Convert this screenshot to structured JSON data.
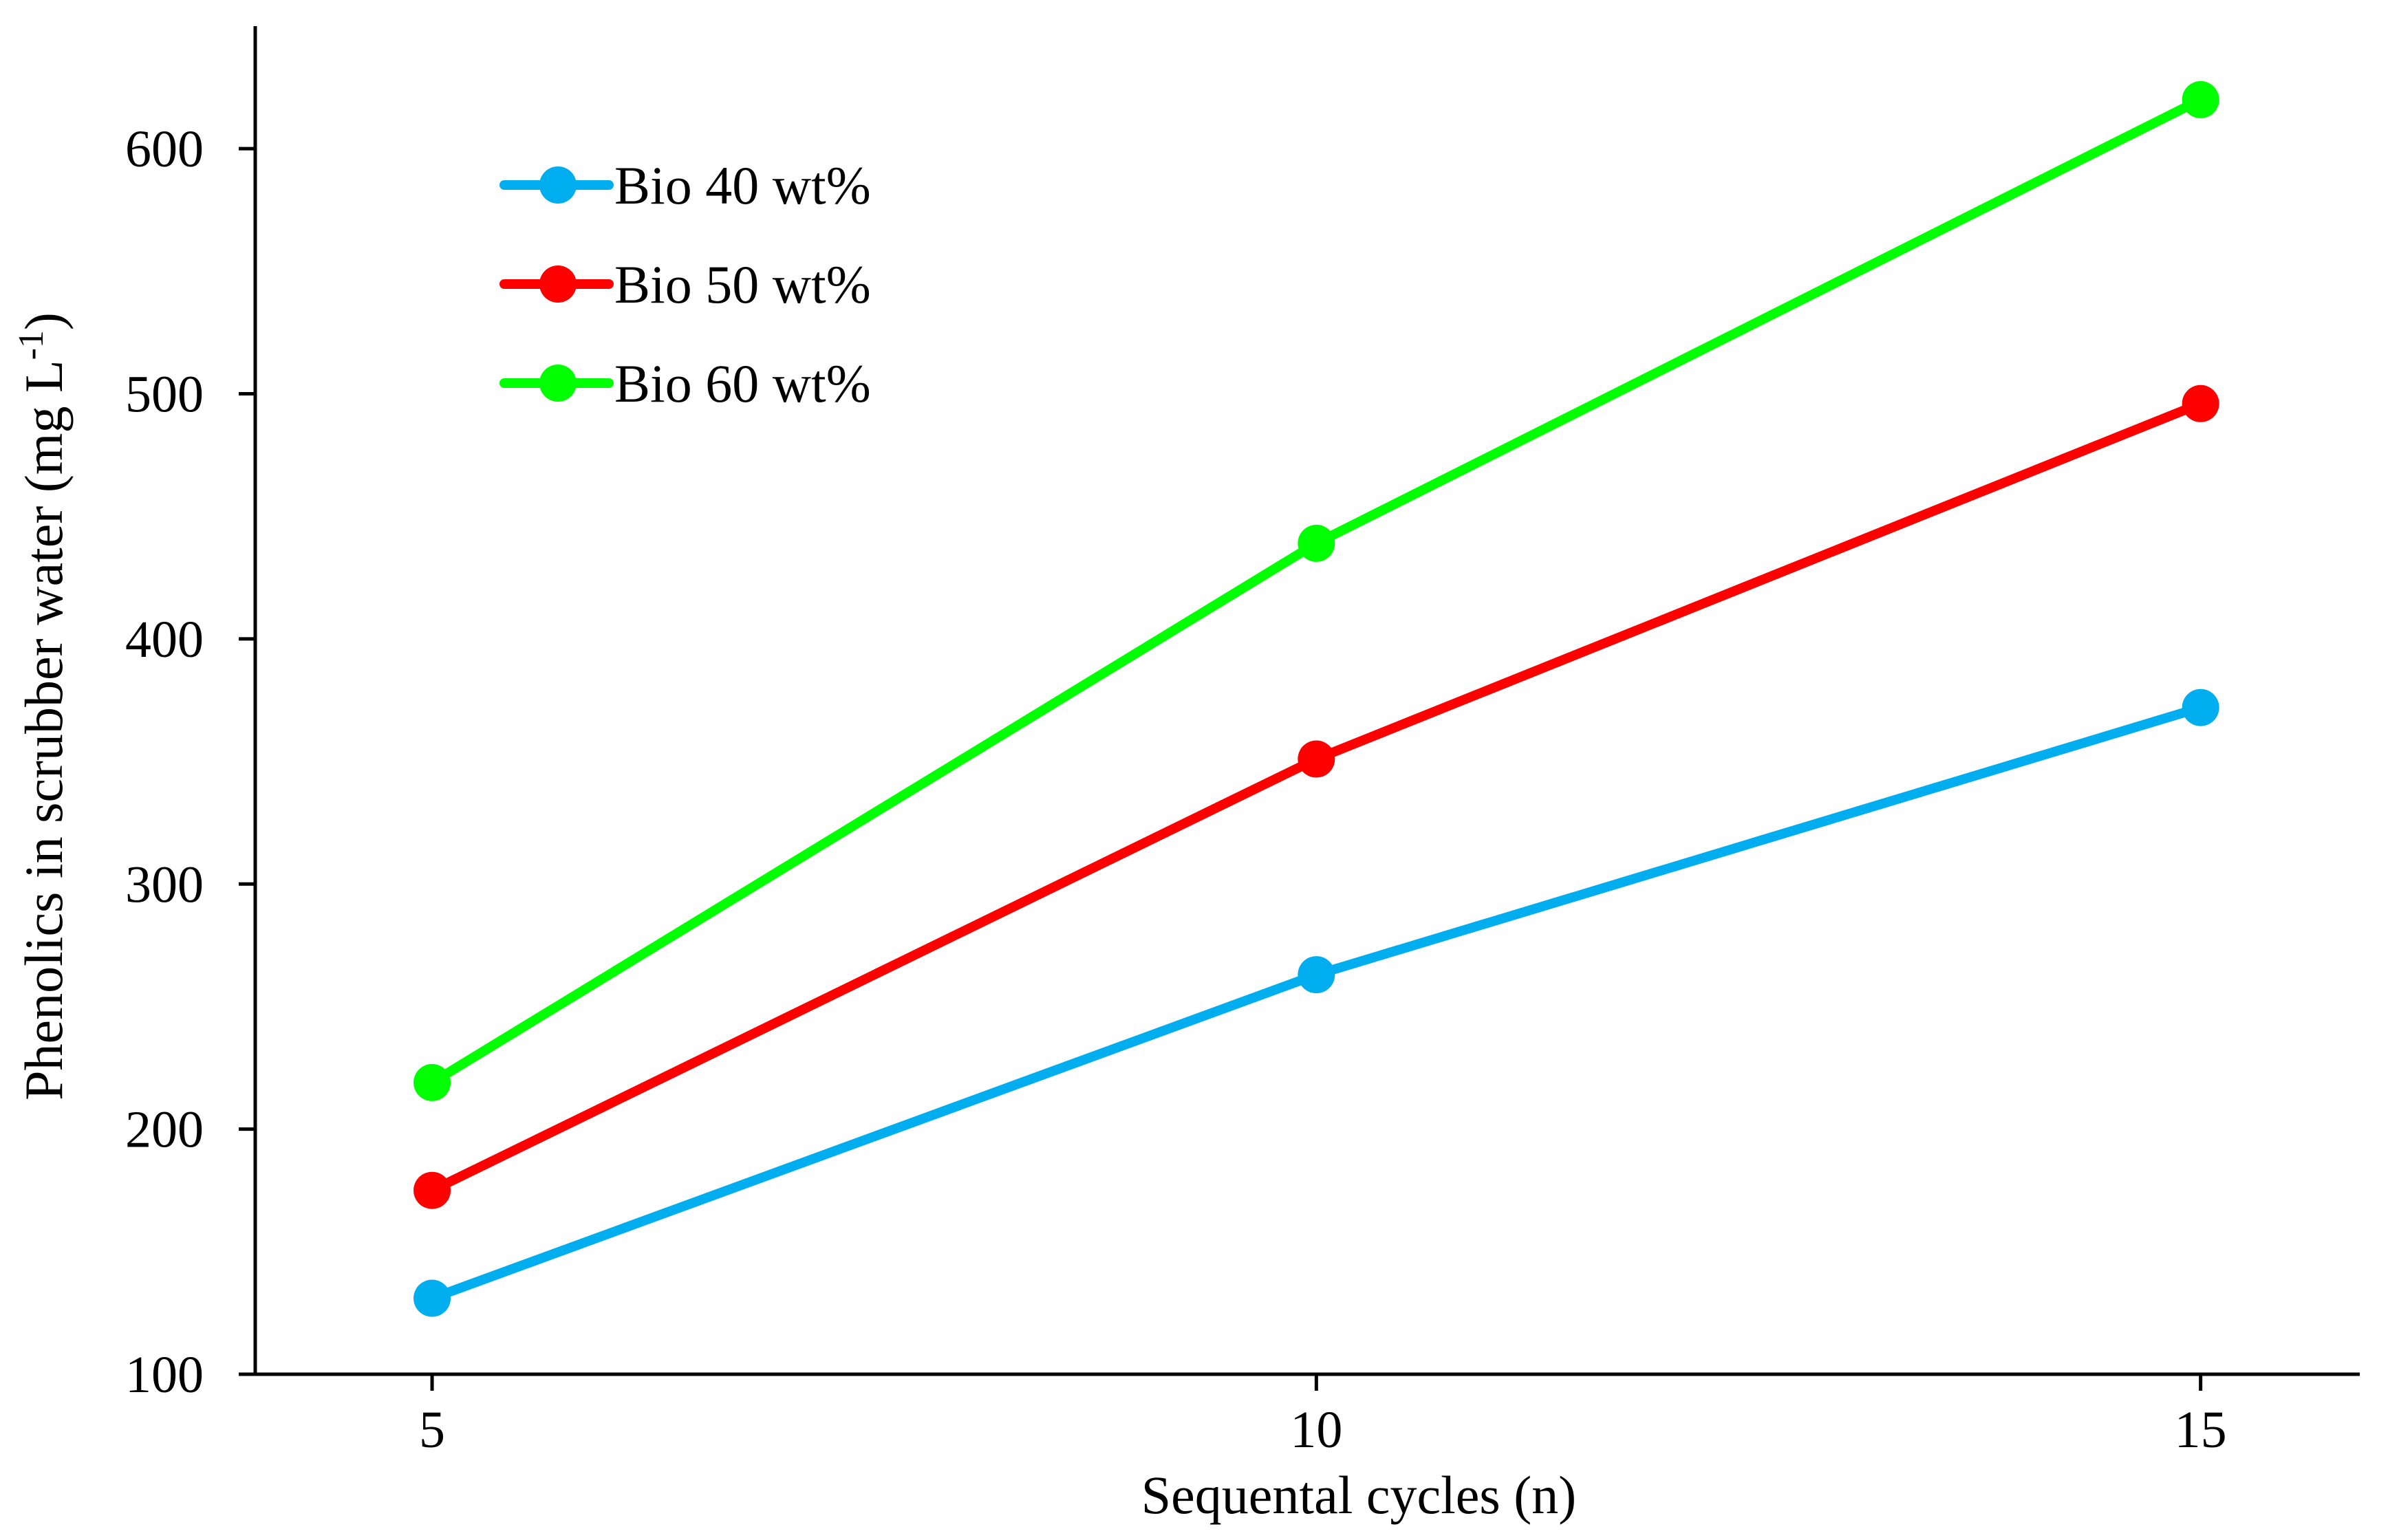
{
  "chart_data": {
    "type": "line",
    "title": "",
    "xlabel": "Sequental cycles (n)",
    "ylabel": "Phenolics in scrubber water (mg L",
    "ylabel_sup": "-1",
    "ylabel_end": ")",
    "x": [
      5,
      10,
      15
    ],
    "xlim": [
      4,
      15.9
    ],
    "ylim": [
      100,
      650
    ],
    "x_ticks": [
      5,
      10,
      15
    ],
    "y_ticks": [
      100,
      200,
      300,
      400,
      500,
      600
    ],
    "grid": false,
    "legend_position": "top-left",
    "series": [
      {
        "name": "Bio 40 wt%",
        "color": "#00aeef",
        "values": [
          131,
          263,
          372
        ]
      },
      {
        "name": "Bio 50 wt%",
        "color": "#ff0000",
        "values": [
          175,
          351,
          496
        ]
      },
      {
        "name": "Bio 60 wt%",
        "color": "#00ff00",
        "values": [
          219,
          439,
          620
        ]
      }
    ]
  }
}
